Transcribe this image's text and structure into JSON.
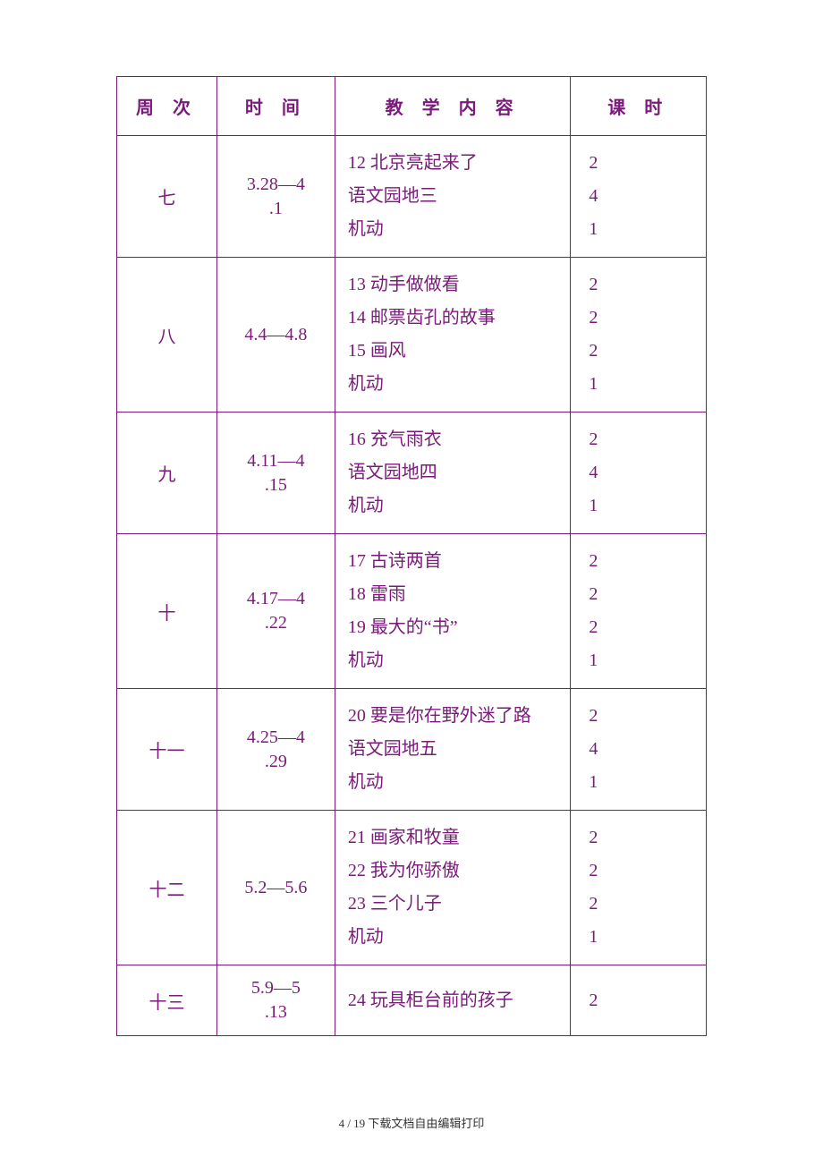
{
  "text_color": "#7a1a7a",
  "border_color": "#7a1a7a",
  "background_color": "#ffffff",
  "headers": {
    "week": "周 次",
    "time": "时 间",
    "content": "教 学 内 容",
    "hours": "课 时"
  },
  "rows": [
    {
      "week": "七",
      "time": "3.28—4.1",
      "content": [
        "12 北京亮起来了",
        "语文园地三",
        "机动"
      ],
      "hours": [
        "2",
        "4",
        "1"
      ]
    },
    {
      "week": "八",
      "time": "4.4—4.8",
      "content": [
        "13 动手做做看",
        "14 邮票齿孔的故事",
        "15 画风",
        "机动"
      ],
      "hours": [
        "2",
        "2",
        "2",
        "1"
      ]
    },
    {
      "week": "九",
      "time": "4.11—4.15",
      "content": [
        "16 充气雨衣",
        "语文园地四",
        "机动"
      ],
      "hours": [
        "2",
        "4",
        "1"
      ]
    },
    {
      "week": "十",
      "time": "4.17—4.22",
      "content": [
        "17 古诗两首",
        "18 雷雨",
        "19 最大的“书”",
        "机动"
      ],
      "hours": [
        "2",
        "2",
        "2",
        "1"
      ]
    },
    {
      "week": "十一",
      "time": "4.25—4.29",
      "content": [
        "20 要是你在野外迷了路",
        "语文园地五",
        "机动"
      ],
      "hours": [
        "2",
        "4",
        "1"
      ]
    },
    {
      "week": "十二",
      "time": "5.2—5.6",
      "content": [
        "21 画家和牧童",
        "22 我为你骄傲",
        "23 三个儿子",
        "机动"
      ],
      "hours": [
        "2",
        "2",
        "2",
        "1"
      ]
    },
    {
      "week": "十三",
      "time": "5.9—5.13",
      "content": [
        "24 玩具柜台前的孩子"
      ],
      "hours": [
        "2"
      ]
    }
  ],
  "footer": "4 / 19 下载文档自由编辑打印"
}
